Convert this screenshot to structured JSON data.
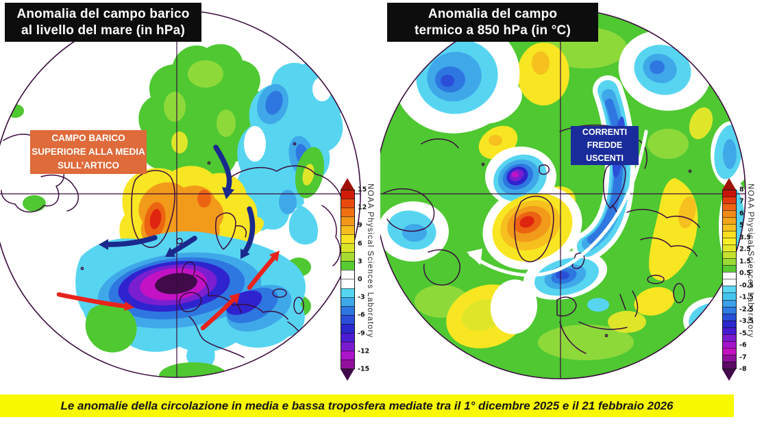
{
  "banner": {
    "text": "Le anomalie della circolazione in media e bassa troposfera mediate tra il 1° dicembre 2025 e il 21 febbraio 2026"
  },
  "panels": [
    {
      "id": "pressure-anomaly-map",
      "title_lines": [
        "Anomalia del campo barico",
        "al livello del mare (in hPa)"
      ],
      "annotation_lines": [
        "CAMPO BARICO",
        "SUPERIORE ALLA MEDIA",
        "SULL’ARTICO"
      ],
      "credit": "NOAA Physical Sciences Laboratory",
      "colorbar": {
        "ticks": [
          "15",
          "12",
          "9",
          "6",
          "3",
          "0",
          "-3",
          "-6",
          "-9",
          "-12",
          "-15"
        ],
        "segments": [
          "#d21c08",
          "#e84a0e",
          "#f07014",
          "#f2961a",
          "#f6bb1e",
          "#f8e222",
          "#d9e328",
          "#a8db30",
          "#58cb33",
          "#ffffff",
          "#ffffff",
          "#57d5f0",
          "#3fa8e9",
          "#2e77e0",
          "#2b4fd8",
          "#2b28cd",
          "#4a1dd3",
          "#7b1bd0",
          "#ab14c9",
          "#93109e"
        ]
      }
    },
    {
      "id": "temperature-anomaly-map",
      "title_lines": [
        "Anomalia del campo",
        "termico a 850 hPa (in °C)"
      ],
      "annotation_lines": [
        "CORRENTI",
        "FREDDE",
        "USCENTI"
      ],
      "credit": "NOAA Physical Sciences Laboratory",
      "colorbar": {
        "ticks": [
          "8",
          "7",
          "6",
          "5",
          "3.5",
          "2.5",
          "1.5",
          "0.5",
          "-0.5",
          "-1.5",
          "-2.5",
          "-3.5",
          "-5",
          "-6",
          "-7",
          "-8"
        ],
        "segments": [
          "#c81406",
          "#e23a0c",
          "#ee6412",
          "#f18a17",
          "#f3a51b",
          "#f5c01f",
          "#f8df22",
          "#f7ee25",
          "#e5e829",
          "#c3e12d",
          "#9cd932",
          "#58cb33",
          "#ffffff",
          "#ffffff",
          "#5cd7f1",
          "#44c4ee",
          "#3da0e8",
          "#2f7ce2",
          "#2b4fd8",
          "#2b28cd",
          "#451bd2",
          "#7b1bd0",
          "#a414cb",
          "#c311c0",
          "#8f0f9c",
          "#5c0b66"
        ]
      }
    }
  ],
  "palette": {
    "green": "#4fc832",
    "green2": "#8ed93a",
    "yellow": "#f8e622",
    "yellow2": "#dfe62a",
    "yellow-orange": "#f6c01f",
    "orange": "#f29a1a",
    "orange-deep": "#ec6412",
    "red": "#df2410",
    "cyan": "#57d5f0",
    "blue-light": "#3fa8e9",
    "blue": "#2e77e0",
    "blue-dark": "#2b4fd8",
    "indigo": "#2f23cf",
    "violet": "#7a1fd0",
    "purple": "#a414cb",
    "magenta": "#c212c4",
    "purple-dark": "#410a49",
    "coast": "#3a0b3e",
    "navy": "#1a2a8c",
    "red-arrow": "#e8231b",
    "orange-box": "#df6a3a",
    "navy-box": "#1a2c9b",
    "banner": "#f8f800",
    "title-bg": "#0d0d0d",
    "cb-top": "#a01206",
    "cb-bottom": "#40094a"
  }
}
